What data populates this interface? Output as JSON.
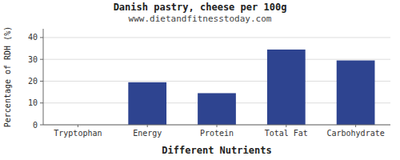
{
  "chart_data": {
    "type": "bar",
    "title": "Danish pastry, cheese per 100g",
    "subtitle": "www.dietandfitnesstoday.com",
    "xlabel": "Different Nutrients",
    "ylabel": "Percentage of RDH (%)",
    "categories": [
      "Tryptophan",
      "Energy",
      "Protein",
      "Total Fat",
      "Carbohydrate"
    ],
    "values": [
      0,
      19.5,
      14.5,
      34.5,
      29.5
    ],
    "color": "#2e4490",
    "ylim": [
      0,
      44
    ],
    "yticks": [
      0,
      10,
      20,
      30,
      40
    ],
    "grid": true
  }
}
